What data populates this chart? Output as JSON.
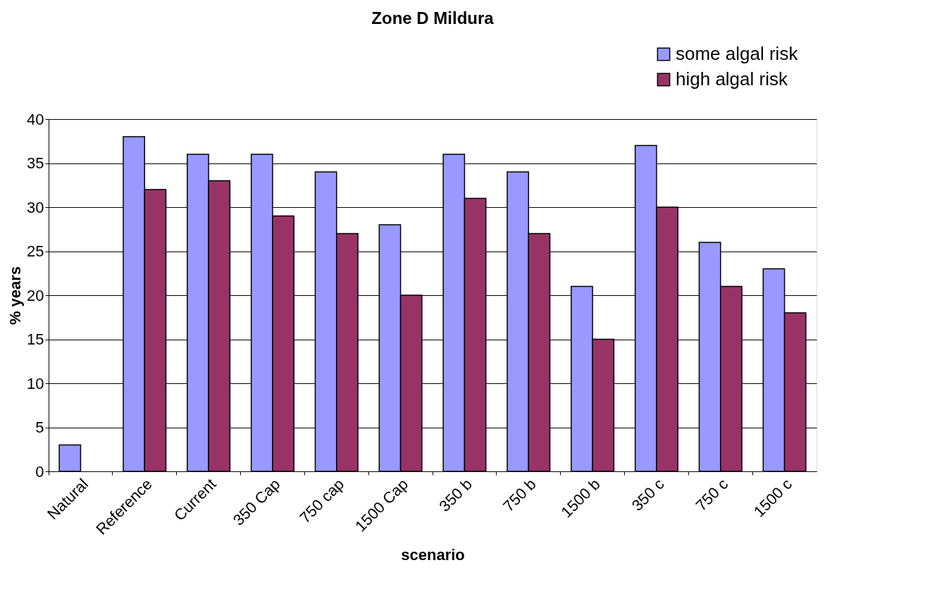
{
  "chart_data": {
    "type": "bar",
    "title": "Zone D Mildura",
    "xlabel": "scenario",
    "ylabel": "% years",
    "categories": [
      "Natural",
      "Reference",
      "Current",
      "350 Cap",
      "750 cap",
      "1500 Cap",
      "350 b",
      "750 b",
      "1500 b",
      "350 c",
      "750 c",
      "1500 c"
    ],
    "series": [
      {
        "name": "some algal risk",
        "color": "#9999ff",
        "values": [
          3,
          38,
          36,
          36,
          34,
          28,
          36,
          34,
          21,
          37,
          26,
          23
        ]
      },
      {
        "name": "high algal risk",
        "color": "#993366",
        "values": [
          null,
          32,
          33,
          29,
          27,
          20,
          31,
          27,
          15,
          30,
          21,
          18
        ]
      }
    ],
    "ylim": [
      0,
      40
    ],
    "yticks": [
      0,
      5,
      10,
      15,
      20,
      25,
      30,
      35,
      40
    ],
    "grid": "y",
    "legend": "top right"
  }
}
